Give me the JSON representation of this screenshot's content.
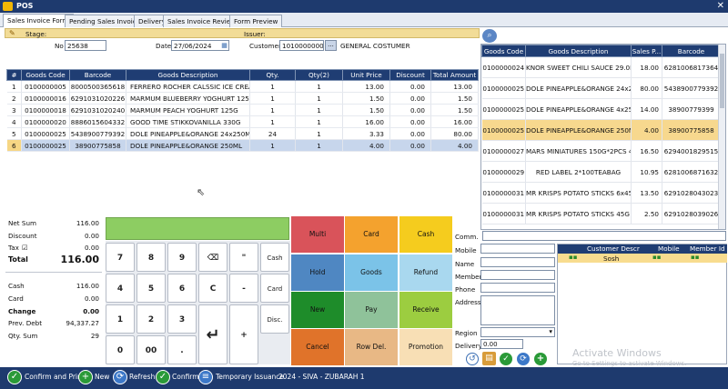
{
  "window": {
    "title": "POS",
    "close": "✕"
  },
  "tabs": [
    "Sales Invoice Form",
    "Pending Sales Invoice",
    "Delivery",
    "Sales Invoice Review",
    "Form Preview"
  ],
  "header": {
    "stage_label": "Stage:",
    "issuer_label": "Issuer:",
    "no_label": "No",
    "no_value": "25638",
    "date_label": "Date",
    "date_value": "27/06/2024",
    "customer_label": "Customer",
    "customer_code": "10100000001",
    "customer_browse": "...",
    "customer_name": "GENERAL COSTUMER"
  },
  "lines_table": {
    "columns": [
      "#",
      "Goods Code",
      "Barcode",
      "Goods Description",
      "Qty.",
      "Qty(2)",
      "Unit Price",
      "Discount",
      "Total Amount"
    ],
    "rows": [
      [
        "1",
        "0100000005",
        "8000500365618",
        "FERRERO ROCHER CALSSIC ICE CREAM ...",
        "1",
        "1",
        "13.00",
        "0.00",
        "13.00"
      ],
      [
        "2",
        "0100000016",
        "6291031020226",
        "MARMUM BLUEBERRY YOGHURT 125G",
        "1",
        "1",
        "1.50",
        "0.00",
        "1.50"
      ],
      [
        "3",
        "0100000018",
        "6291031020240",
        "MARMUM PEACH YOGHURT 125G",
        "1",
        "1",
        "1.50",
        "0.00",
        "1.50"
      ],
      [
        "4",
        "0100000020",
        "8886015604332",
        "GOOD TIME STIKKOVANILLA 330G",
        "1",
        "1",
        "16.00",
        "0.00",
        "16.00"
      ],
      [
        "5",
        "0100000025",
        "5438900779392",
        "DOLE PINEAPPLE&ORANGE 24x250ML",
        "24",
        "1",
        "3.33",
        "0.00",
        "80.00"
      ],
      [
        "6",
        "0100000025",
        "38900775858",
        "DOLE PINEAPPLE&ORANGE 250ML",
        "1",
        "1",
        "4.00",
        "0.00",
        "4.00"
      ]
    ],
    "selected_row": 5
  },
  "products": {
    "search_icon": "search-icon",
    "columns": [
      "Goods Code",
      "Goods Description",
      "Sales P...",
      "Barcode"
    ],
    "rows": [
      [
        "0100000024",
        "KNOR SWEET CHILI SAUCE 29.0ML 68...",
        "18.00",
        "6281006817364"
      ],
      [
        "0100000025",
        "DOLE PINEAPPLE&ORANGE 24x250ML",
        "80.00",
        "5438900779392"
      ],
      [
        "0100000025",
        "DOLE PINEAPPLE&ORANGE 4x250ML",
        "14.00",
        "38900779399"
      ],
      [
        "0100000025",
        "DOLE PINEAPPLE&ORANGE 250ML",
        "4.00",
        "38900775858"
      ],
      [
        "0100000027",
        "MARS MINIATURES 150G*2PCS 4053...",
        "16.50",
        "6294001829515"
      ],
      [
        "0100000029",
        "RED LABEL 2*100TEABAG",
        "10.95",
        "6281006871632"
      ],
      [
        "0100000031",
        "MR KRISPS POTATO STICKS 6x45G S...",
        "13.50",
        "6291028043023"
      ],
      [
        "0100000031",
        "MR KRISPS POTATO STICKS 45G SALT",
        "2.50",
        "6291028039026"
      ]
    ],
    "selected_row": 3
  },
  "totals": {
    "net_sum_label": "Net Sum",
    "net_sum": "116.00",
    "discount_label": "Discount",
    "discount": "0.00",
    "tax_label": "Tax",
    "tax_check": "☑",
    "tax": "0.00",
    "total_label": "Total",
    "total": "116.00",
    "cash_label": "Cash",
    "cash": "116.00",
    "card_label": "Card",
    "card": "0.00",
    "change_label": "Change",
    "change": "0.00",
    "prev_debt_label": "Prev. Debt",
    "prev_debt": "94,337.27",
    "qty_sum_label": "Qty. Sum",
    "qty_sum": "29"
  },
  "keypad": {
    "keys": [
      "7",
      "8",
      "9",
      "⌫",
      "\"",
      "Cash",
      "4",
      "5",
      "6",
      "C",
      "-",
      "Card",
      "1",
      "2",
      "3",
      "↵",
      "+",
      "Disc.",
      "0",
      "00",
      "."
    ]
  },
  "functions": {
    "multi": "Multi",
    "card": "Card",
    "cash": "Cash",
    "hold": "Hold",
    "goods": "Goods",
    "refund": "Refund",
    "new": "New",
    "pay": "Pay",
    "receive": "Receive",
    "cancel": "Cancel",
    "row_del": "Row Del.",
    "promotion": "Promotion",
    "colors": {
      "multi": "#d9535a",
      "card": "#f4a22e",
      "cash": "#f5cc1e",
      "hold": "#4f87c2",
      "goods": "#7bc3e8",
      "refund": "#a9d8ef",
      "new": "#1e8c2a",
      "pay": "#8fc29a",
      "receive": "#9ccd40",
      "cancel": "#e0732a",
      "row_del": "#e8b885",
      "promotion": "#f8dfb5"
    }
  },
  "customer_info": {
    "comm": "Comm.",
    "mobile": "Mobile",
    "name": "Name",
    "member": "Member",
    "phone": "Phone",
    "address": "Address",
    "region": "Region",
    "delivery": "Delivery",
    "delivery_value": "0.00"
  },
  "customer_grid": {
    "columns": [
      "Customer Descr",
      "Mobile",
      "Member Id"
    ],
    "filter_value": "Sosh"
  },
  "statusbar": {
    "confirm_print": "Confirm and Print",
    "new": "New",
    "refresh": "Refresh",
    "confirm": "Confirm",
    "temp_issuance": "Temporary Issuance",
    "info": "2024 - SIVA - ZUBARAH 1"
  },
  "watermark": {
    "line1": "Activate Windows",
    "line2": "Go to Settings to activate Windows."
  }
}
